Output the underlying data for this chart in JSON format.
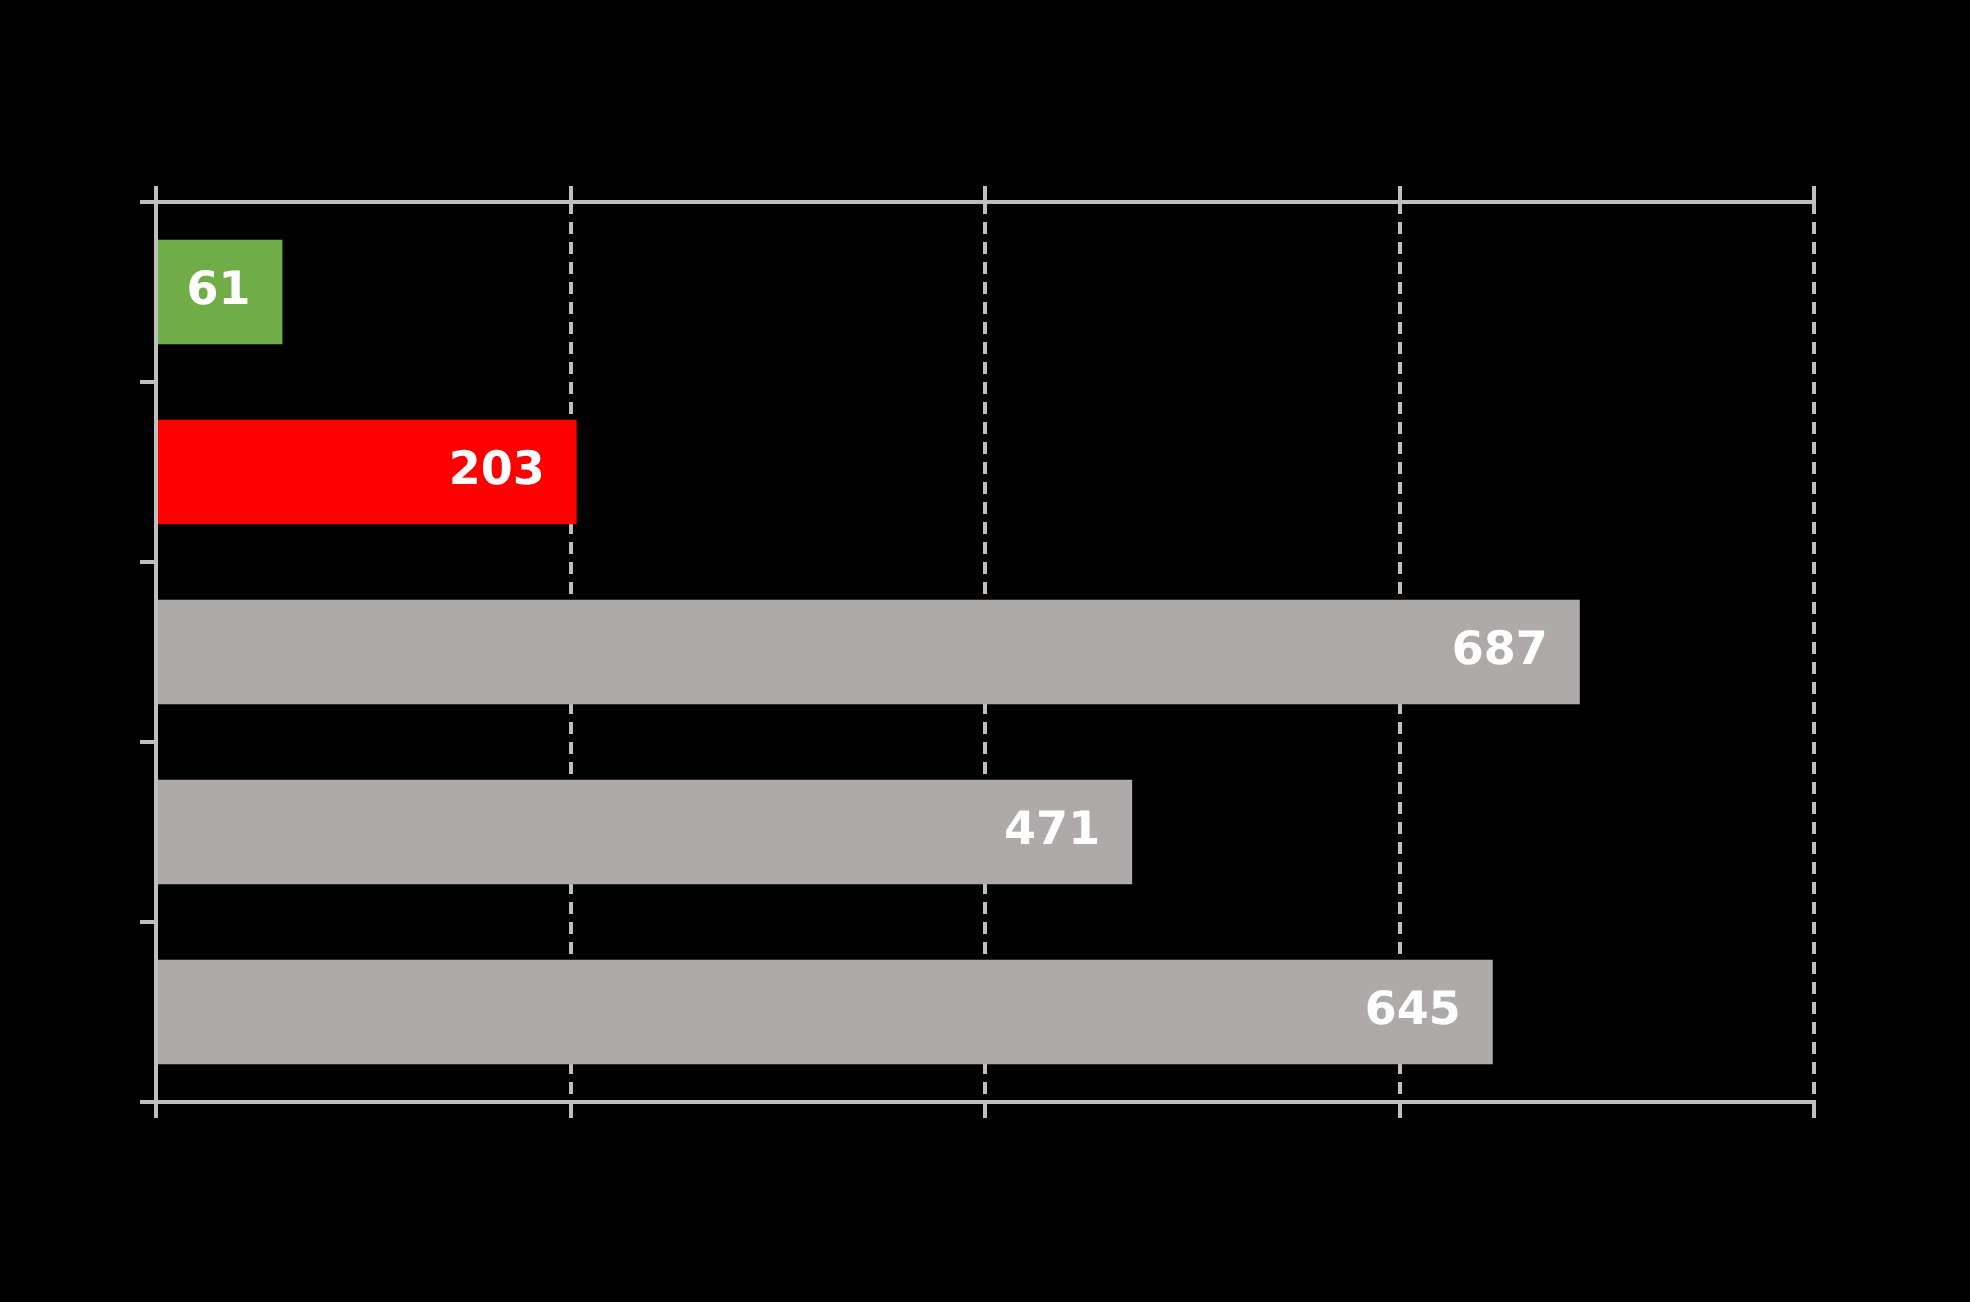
{
  "chart_data": {
    "type": "bar",
    "orientation": "horizontal",
    "categories": [
      null,
      null,
      null,
      null,
      null
    ],
    "values": [
      61,
      203,
      687,
      471,
      645
    ],
    "colors": [
      "#70ad47",
      "#ff0000",
      "#aeaaaa",
      "#aeaaaa",
      "#aeaaaa"
    ],
    "xlim": [
      0,
      800
    ],
    "xticks": [
      {
        "value": 0,
        "label": null
      },
      {
        "value": 200,
        "label": null
      },
      {
        "value": 400,
        "label": null
      },
      {
        "value": 600,
        "label": null
      },
      {
        "value": 800,
        "label": null
      }
    ],
    "grid": "x",
    "line_style": "dashed",
    "data_labels": true,
    "legend": false
  }
}
